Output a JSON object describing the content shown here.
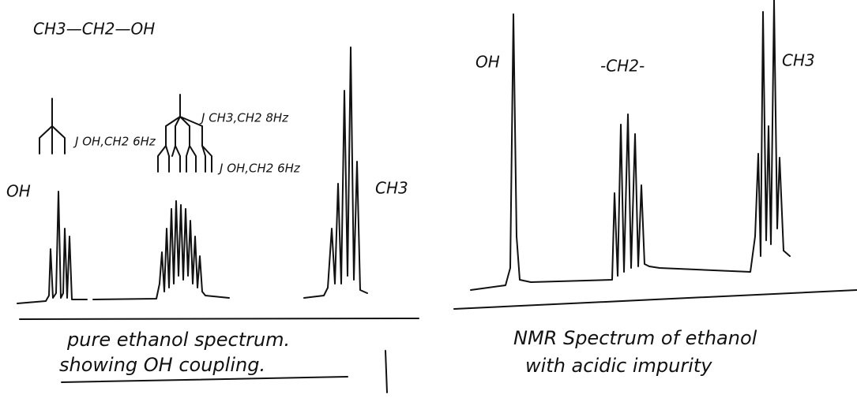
{
  "left": {
    "formula": "CH3—CH2—OH",
    "tree_oh_label": "J OH,CH2 6Hz",
    "tree_ch2_label_top": "J CH3,CH2 8Hz",
    "tree_ch2_label_bottom": "J OH,CH2 6Hz",
    "peak_oh": "OH",
    "peak_ch3": "CH3",
    "caption": [
      "pure ethanol spectrum.",
      "showing OH coupling."
    ]
  },
  "right": {
    "peak_oh": "OH",
    "peak_ch2": "-CH2-",
    "peak_ch3": "CH3",
    "caption": [
      "NMR Spectrum of ethanol",
      "with acidic impurity"
    ]
  }
}
